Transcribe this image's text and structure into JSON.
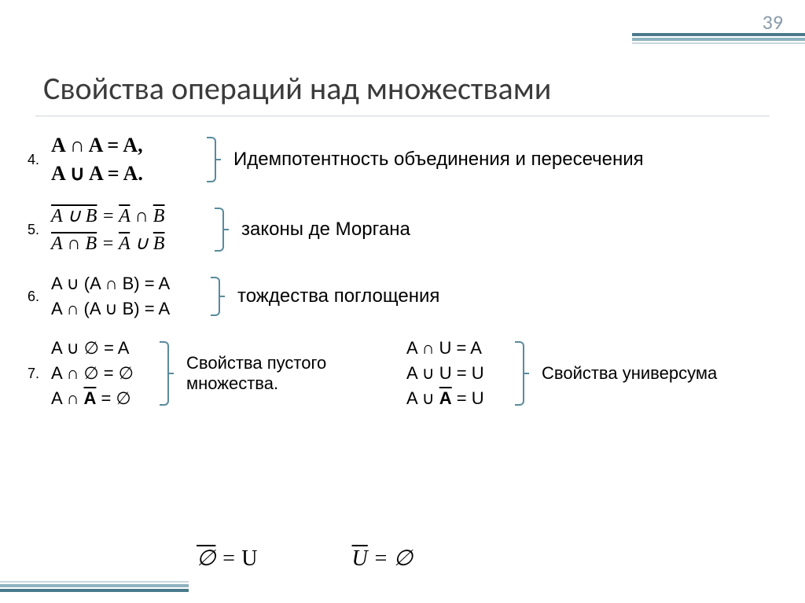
{
  "slide": {
    "page_number": "39",
    "title": "Свойства операций над множествами",
    "title_color": "#3b3b3b",
    "accent_color": "#4a7a8c",
    "bracket_color": "#5a8a9c"
  },
  "properties": [
    {
      "number": "4.",
      "formulas": [
        "A ∩ A = A,",
        "A ∪ A = A."
      ],
      "label": "Идемпотентность объединения и пересечения",
      "style": "bold_serif"
    },
    {
      "number": "5.",
      "formulas_html": [
        "<span class='overline'>A ∪ B</span> = <span class='overline'>A</span> ∩ <span class='overline'>B</span>",
        "<span class='overline'>A ∩ B</span> = <span class='overline'>A</span> ∪ <span class='overline'>B</span>"
      ],
      "label": "законы де Моргана",
      "style": "italic_serif"
    },
    {
      "number": "6.",
      "formulas": [
        "A ∪ (A ∩ B) = A",
        "A ∩ (A ∪ B) = A"
      ],
      "label": "тождества поглощения",
      "style": "sans"
    },
    {
      "number": "7.",
      "left": {
        "formulas_html": [
          "A ∪ ∅ = A",
          "A ∩ ∅ = ∅",
          "A ∩ <span class='overline' style='font-weight:bold;font-style:normal'>A</span> = ∅"
        ],
        "label": "Свойства пустого множества."
      },
      "right": {
        "formulas_html": [
          "A ∩ U = A",
          "A ∪ U = U",
          "A ∪ <span class='overline' style='font-weight:bold;font-style:normal'>A</span> = U"
        ],
        "label": "Свойства универсума"
      }
    }
  ],
  "bottom_equations_html": [
    "<span class='overline'>∅</span> = <span class='op'>U</span>",
    "<span class='overline'>U</span> = ∅"
  ]
}
